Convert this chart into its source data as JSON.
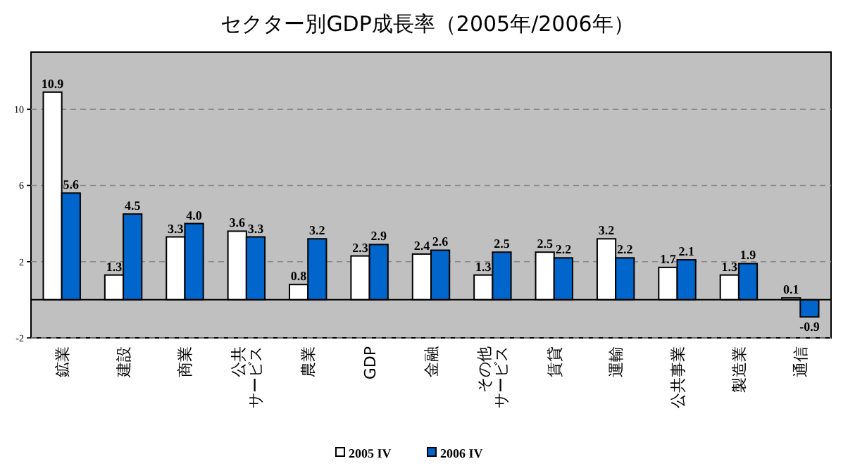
{
  "chart_data": {
    "type": "bar",
    "title": "セクター別GDP成長率（2005年/2006年）",
    "categories": [
      "鉱業",
      "建設",
      "商業",
      "公共サービス",
      "農業",
      "GDP",
      "金融",
      "その他サービス",
      "賃貸",
      "運輸",
      "公共事業",
      "製造業",
      "通信"
    ],
    "series": [
      {
        "name": "2005 IV",
        "color": "#ffffff",
        "values": [
          10.9,
          1.3,
          3.3,
          3.6,
          0.8,
          2.3,
          2.4,
          1.3,
          2.5,
          3.2,
          1.7,
          1.3,
          0.1
        ],
        "value_labels": [
          "10.9",
          "1.3",
          "3.3",
          "3.6",
          "0.8",
          "2.3",
          "2.4",
          "1.3",
          "2.5",
          "3.2",
          "1.7",
          "1.3",
          "0.1"
        ]
      },
      {
        "name": "2006 IV",
        "color": "#0066cc",
        "values": [
          5.6,
          4.5,
          4.0,
          3.3,
          3.2,
          2.9,
          2.6,
          2.5,
          2.2,
          2.2,
          2.1,
          1.9,
          -0.9
        ],
        "value_labels": [
          "5.6",
          "4.5",
          "4.0",
          "3.3",
          "3.2",
          "2.9",
          "2.6",
          "2.5",
          "2.2",
          "2.2",
          "2.1",
          "1.9",
          "-0.9"
        ]
      }
    ],
    "ylim": [
      -2,
      13
    ],
    "yticks": [
      -2,
      2,
      6,
      10
    ],
    "grid": "y",
    "legend": "bottom"
  }
}
